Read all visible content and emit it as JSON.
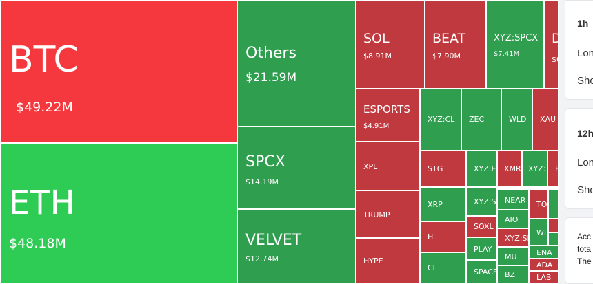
{
  "colors": {
    "up": "#2f9e4f",
    "down": "#c0393f",
    "up_bright": "#2ecc55",
    "down_bright": "#f5383d"
  },
  "tiles": [
    {
      "sym": "BTC",
      "vol": "$49.22M",
      "color": "down_bright"
    },
    {
      "sym": "ETH",
      "vol": "$48.18M",
      "color": "up_bright"
    },
    {
      "sym": "Others",
      "vol": "$21.59M",
      "color": "up"
    },
    {
      "sym": "SPCX",
      "vol": "$14.19M",
      "color": "up"
    },
    {
      "sym": "VELVET",
      "vol": "$12.74M",
      "color": "up"
    },
    {
      "sym": "SOL",
      "vol": "$8.91M",
      "color": "down"
    },
    {
      "sym": "BEAT",
      "vol": "$7.90M",
      "color": "down"
    },
    {
      "sym": "XYZ:SPCX",
      "vol": "$7.41M",
      "color": "up"
    },
    {
      "sym": "D",
      "vol": "$6",
      "color": "down"
    },
    {
      "sym": "ESPORTS",
      "vol": "$4.91M",
      "color": "down"
    },
    {
      "sym": "XPL",
      "vol": "",
      "color": "down"
    },
    {
      "sym": "TRUMP",
      "vol": "",
      "color": "down"
    },
    {
      "sym": "HYPE",
      "vol": "",
      "color": "down"
    },
    {
      "sym": "XYZ:CL",
      "vol": "",
      "color": "up"
    },
    {
      "sym": "ZEC",
      "vol": "",
      "color": "up"
    },
    {
      "sym": "WLD",
      "vol": "",
      "color": "up"
    },
    {
      "sym": "XAU",
      "vol": "",
      "color": "down"
    },
    {
      "sym": "STG",
      "vol": "",
      "color": "down"
    },
    {
      "sym": "XYZ:E",
      "vol": "",
      "color": "up"
    },
    {
      "sym": "XMR",
      "vol": "",
      "color": "down"
    },
    {
      "sym": "XYZ:",
      "vol": "",
      "color": "up"
    },
    {
      "sym": "H",
      "vol": "",
      "color": "down"
    },
    {
      "sym": "XRP",
      "vol": "",
      "color": "up"
    },
    {
      "sym": "XYZ:S",
      "vol": "",
      "color": "up"
    },
    {
      "sym": "NEAR",
      "vol": "",
      "color": "up"
    },
    {
      "sym": "TO",
      "vol": "",
      "color": "down"
    },
    {
      "sym": "AIO",
      "vol": "",
      "color": "up"
    },
    {
      "sym": "SOXL",
      "vol": "",
      "color": "down"
    },
    {
      "sym": "WI",
      "vol": "",
      "color": "up"
    },
    {
      "sym": "H",
      "vol": "",
      "color": "down"
    },
    {
      "sym": "XYZ:SI",
      "vol": "",
      "color": "down"
    },
    {
      "sym": "PLAY",
      "vol": "",
      "color": "up"
    },
    {
      "sym": "MU",
      "vol": "",
      "color": "up"
    },
    {
      "sym": "ENA",
      "vol": "",
      "color": "up"
    },
    {
      "sym": "CL",
      "vol": "",
      "color": "up"
    },
    {
      "sym": "SPACE",
      "vol": "",
      "color": "up"
    },
    {
      "sym": "ADA",
      "vol": "",
      "color": "down"
    },
    {
      "sym": "BZ",
      "vol": "",
      "color": "up"
    },
    {
      "sym": "LAB",
      "vol": "",
      "color": "down"
    },
    {
      "sym": "",
      "vol": "",
      "color": "down"
    },
    {
      "sym": "",
      "vol": "",
      "color": "up"
    },
    {
      "sym": "",
      "vol": "",
      "color": "down"
    },
    {
      "sym": "",
      "vol": "",
      "color": "up"
    },
    {
      "sym": "",
      "vol": "",
      "color": "down"
    }
  ],
  "panel": {
    "card1": {
      "title": "1h",
      "long": "Lon",
      "short": "Sho"
    },
    "card2": {
      "title": "12h",
      "long": "Lon",
      "short": "Sho"
    },
    "card3": {
      "line1": "Acc",
      "line2": "tota",
      "line3": "The"
    }
  }
}
